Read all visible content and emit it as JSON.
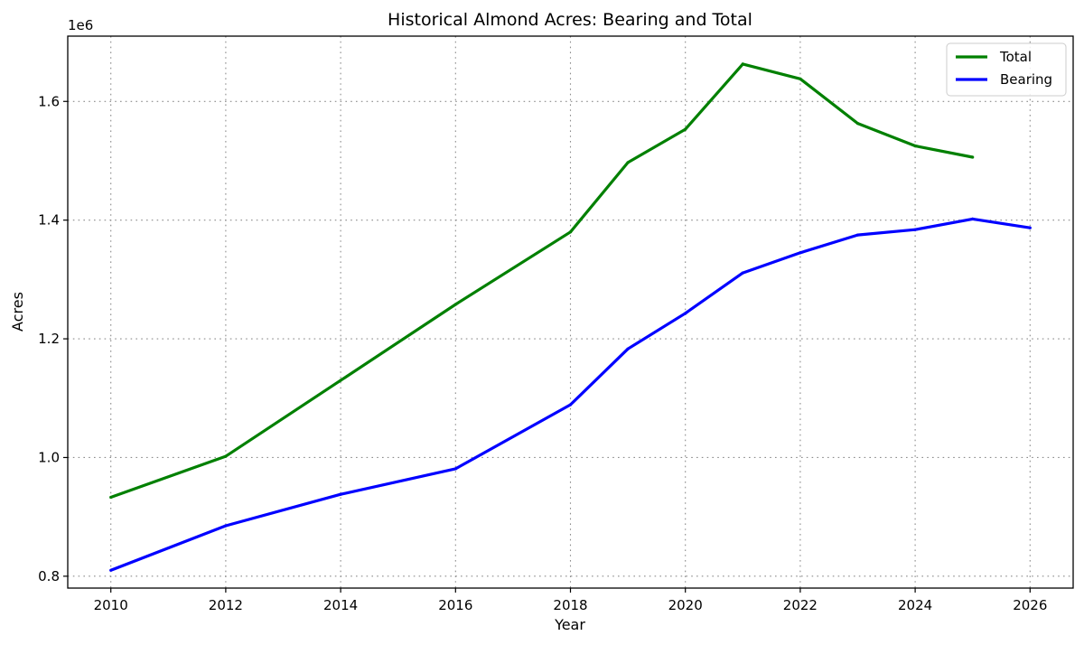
{
  "chart_data": {
    "type": "line",
    "title": "Historical Almond Acres: Bearing and Total",
    "xlabel": "Year",
    "ylabel": "Acres",
    "y_offset_label": "1e6",
    "y_scale_factor": 1000000,
    "xlim": [
      2009.25,
      2026.75
    ],
    "ylim": [
      780000,
      1710000
    ],
    "x_ticks": [
      2010,
      2012,
      2014,
      2016,
      2018,
      2020,
      2022,
      2024,
      2026
    ],
    "y_ticks": [
      800000,
      1000000,
      1200000,
      1400000,
      1600000
    ],
    "y_tick_labels": [
      "0.8",
      "1.0",
      "1.2",
      "1.4",
      "1.6"
    ],
    "grid": true,
    "legend_position": "top-right",
    "series": [
      {
        "name": "Total",
        "color": "#008000",
        "x": [
          2010,
          2012,
          2014,
          2016,
          2018,
          2019,
          2020,
          2021,
          2022,
          2023,
          2024,
          2025
        ],
        "values": [
          933000,
          1002000,
          1130000,
          1258000,
          1380000,
          1497000,
          1553000,
          1663000,
          1638000,
          1563000,
          1525000,
          1506000
        ]
      },
      {
        "name": "Bearing",
        "color": "#0000ff",
        "x": [
          2010,
          2012,
          2014,
          2016,
          2018,
          2019,
          2020,
          2021,
          2022,
          2023,
          2024,
          2025,
          2026
        ],
        "values": [
          810000,
          885000,
          938000,
          981000,
          1089000,
          1183000,
          1243000,
          1311000,
          1345000,
          1375000,
          1384000,
          1402000,
          1387000
        ]
      }
    ]
  }
}
